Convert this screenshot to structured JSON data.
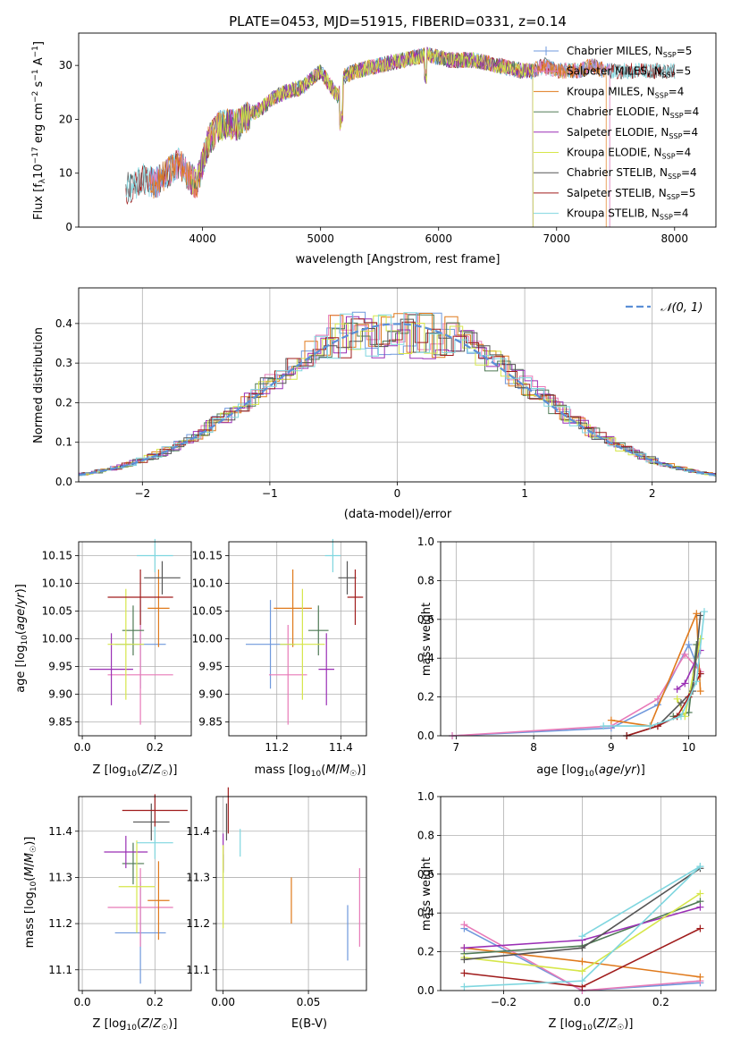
{
  "figure_title": "PLATE=0453, MJD=51915, FIBERID=0331, z=0.14",
  "colors": {
    "chab_miles": "#6f98dc",
    "salp_miles": "#e87ab8",
    "krou_miles": "#e07a1c",
    "chab_elodie": "#4f7a55",
    "salp_elodie": "#9a2fb5",
    "krou_elodie": "#d6e64a",
    "chab_stelib": "#555555",
    "salp_stelib": "#a01c1c",
    "krou_stelib": "#7fd6df",
    "normal_curve": "#5b8fd6",
    "grid": "#b0b0b0"
  },
  "chart_data": [
    {
      "type": "line",
      "panel": "spectrum",
      "xlabel": "wavelength [Angstrom, rest frame]",
      "ylabel": "Flux [f_λ10^-17 erg cm^-2 s^-1 A^-1]",
      "xlim": [
        2950,
        8350
      ],
      "ylim": [
        0,
        36
      ],
      "xticks": [
        4000,
        5000,
        6000,
        7000,
        8000
      ],
      "yticks": [
        0,
        10,
        20,
        30
      ],
      "grid": false,
      "legend_position": "top-right",
      "continuum_x": [
        3350,
        3500,
        3600,
        3700,
        3800,
        3900,
        3950,
        4050,
        4150,
        4300,
        4400,
        4500,
        4600,
        4700,
        4850,
        5000,
        5150,
        5200,
        5300,
        5500,
        5700,
        5900,
        6100,
        6300,
        6500,
        6700,
        6800,
        6900,
        7000,
        7100,
        7200,
        7300,
        7400,
        7500
      ],
      "continuum_y": [
        7,
        9,
        8,
        10,
        12,
        9,
        8,
        16,
        19,
        19,
        21,
        22,
        24,
        25,
        26,
        29,
        24,
        28,
        29,
        30,
        31,
        32,
        31,
        31,
        30,
        29,
        29,
        30,
        29,
        29,
        29,
        30,
        29,
        29
      ],
      "series": [
        {
          "name": "Chabrier MILES",
          "n_ssp": "5",
          "color_key": "chab_miles",
          "x_range": [
            3550,
            7450
          ]
        },
        {
          "name": "Salpeter MILES",
          "n_ssp": "5",
          "color_key": "salp_miles",
          "x_range": [
            3550,
            7450
          ]
        },
        {
          "name": "Kroupa MILES",
          "n_ssp": "4",
          "color_key": "krou_miles",
          "x_range": [
            3550,
            7420
          ]
        },
        {
          "name": "Chabrier ELODIE",
          "n_ssp": "4",
          "color_key": "chab_elodie",
          "x_range": [
            3900,
            6800
          ]
        },
        {
          "name": "Salpeter ELODIE",
          "n_ssp": "4",
          "color_key": "salp_elodie",
          "x_range": [
            3900,
            6800
          ]
        },
        {
          "name": "Kroupa ELODIE",
          "n_ssp": "4",
          "color_key": "krou_elodie",
          "x_range": [
            3900,
            6800
          ]
        },
        {
          "name": "Chabrier STELIB",
          "n_ssp": "4",
          "color_key": "chab_stelib",
          "x_range": [
            3350,
            8000
          ]
        },
        {
          "name": "Salpeter STELIB",
          "n_ssp": "5",
          "color_key": "salp_stelib",
          "x_range": [
            3350,
            8000
          ]
        },
        {
          "name": "Kroupa STELIB",
          "n_ssp": "4",
          "color_key": "krou_stelib",
          "x_range": [
            3350,
            8000
          ]
        }
      ]
    },
    {
      "type": "line",
      "panel": "residuals",
      "xlabel": "(data-model)/error",
      "ylabel": "Normed distribution",
      "xlim": [
        -2.5,
        2.5
      ],
      "ylim": [
        0,
        0.49
      ],
      "xticks": [
        -2,
        -1,
        0,
        1,
        2
      ],
      "yticks": [
        0.0,
        0.1,
        0.2,
        0.3,
        0.4
      ],
      "grid": true,
      "legend_position": "top-right",
      "legend_label": "𝒩(0, 1)",
      "bin_width": 0.1
    },
    {
      "type": "scatter",
      "panel": "age_vs_Z",
      "xlabel": "Z [log10(Z/Z☉)]",
      "ylabel": "age  [log10(age/yr)]",
      "xlim": [
        -0.01,
        0.3
      ],
      "ylim": [
        9.825,
        10.175
      ],
      "xticks": [
        0.0,
        0.2
      ],
      "yticks": [
        9.85,
        9.9,
        9.95,
        10.0,
        10.05,
        10.1,
        10.15
      ],
      "grid": true
    },
    {
      "type": "scatter",
      "panel": "age_vs_mass",
      "xlabel": "mass [log10(M/M☉)]",
      "xlim": [
        11.05,
        11.48
      ],
      "ylim": [
        9.825,
        10.175
      ],
      "xticks": [
        11.2,
        11.4
      ],
      "yticks": [
        9.85,
        9.9,
        9.95,
        10.0,
        10.05,
        10.1,
        10.15
      ],
      "grid": true
    },
    {
      "type": "line",
      "panel": "massweight_vs_age",
      "xlabel": "age  [log10(age/yr)]",
      "ylabel": "mass weight",
      "xlim": [
        6.8,
        10.35
      ],
      "ylim": [
        0,
        1
      ],
      "xticks": [
        7,
        8,
        9,
        10
      ],
      "yticks": [
        0.0,
        0.2,
        0.4,
        0.6,
        0.8,
        1.0
      ],
      "grid": true,
      "series": [
        {
          "key": "chab_miles",
          "x": [
            6.95,
            9.0,
            9.6,
            10.0,
            10.15
          ],
          "y": [
            0.0,
            0.04,
            0.16,
            0.47,
            0.32
          ]
        },
        {
          "key": "salp_miles",
          "x": [
            6.95,
            9.0,
            9.6,
            9.95,
            10.15
          ],
          "y": [
            0.0,
            0.05,
            0.19,
            0.42,
            0.33
          ]
        },
        {
          "key": "krou_miles",
          "x": [
            9.0,
            9.5,
            10.1,
            10.15
          ],
          "y": [
            0.08,
            0.05,
            0.63,
            0.23
          ]
        },
        {
          "key": "chab_elodie",
          "x": [
            9.8,
            10.0,
            10.1
          ],
          "y": [
            0.1,
            0.12,
            0.47
          ]
        },
        {
          "key": "salp_elodie",
          "x": [
            9.85,
            9.95,
            10.15
          ],
          "y": [
            0.24,
            0.27,
            0.44
          ]
        },
        {
          "key": "krou_elodie",
          "x": [
            9.85,
            9.95,
            10.15
          ],
          "y": [
            0.19,
            0.1,
            0.5
          ]
        },
        {
          "key": "chab_stelib",
          "x": [
            9.2,
            9.6,
            9.9,
            10.05,
            10.15
          ],
          "y": [
            0.0,
            0.05,
            0.17,
            0.23,
            0.62
          ]
        },
        {
          "key": "salp_stelib",
          "x": [
            9.2,
            9.6,
            9.85,
            10.0,
            10.15
          ],
          "y": [
            0.0,
            0.05,
            0.1,
            0.2,
            0.32
          ]
        },
        {
          "key": "krou_stelib",
          "x": [
            8.9,
            9.5,
            9.9,
            10.1,
            10.2
          ],
          "y": [
            0.05,
            0.05,
            0.1,
            0.28,
            0.64
          ]
        }
      ]
    },
    {
      "type": "scatter",
      "panel": "mass_vs_Z",
      "xlabel": "Z [log10(Z/Z☉)]",
      "ylabel": "mass [log10(M/M☉)]",
      "xlim": [
        -0.01,
        0.3
      ],
      "ylim": [
        11.055,
        11.475
      ],
      "xticks": [
        0.0,
        0.2
      ],
      "yticks": [
        11.1,
        11.2,
        11.3,
        11.4
      ],
      "grid": true
    },
    {
      "type": "scatter",
      "panel": "mass_vs_EBV",
      "xlabel": "E(B-V)",
      "xlim": [
        -0.004,
        0.084
      ],
      "ylim": [
        11.055,
        11.475
      ],
      "xticks": [
        0.0,
        0.05
      ],
      "yticks": [
        11.1,
        11.2,
        11.3,
        11.4
      ],
      "grid": true
    },
    {
      "type": "line",
      "panel": "massweight_vs_Z",
      "xlabel": "Z [log10(Z/Z☉)]",
      "ylabel": "mass weight",
      "xlim": [
        -0.36,
        0.34
      ],
      "ylim": [
        0,
        1
      ],
      "xticks": [
        -0.2,
        0.0,
        0.2
      ],
      "yticks": [
        0.0,
        0.2,
        0.4,
        0.6,
        0.8,
        1.0
      ],
      "grid": true,
      "series": [
        {
          "key": "chab_miles",
          "x": [
            -0.3,
            0.0,
            0.3
          ],
          "y": [
            0.32,
            0.0,
            0.04
          ]
        },
        {
          "key": "salp_miles",
          "x": [
            -0.3,
            0.0,
            0.3
          ],
          "y": [
            0.34,
            0.0,
            0.05
          ]
        },
        {
          "key": "krou_miles",
          "x": [
            -0.3,
            0.0,
            0.3
          ],
          "y": [
            0.22,
            0.15,
            0.07
          ]
        },
        {
          "key": "chab_elodie",
          "x": [
            -0.3,
            0.0,
            0.3
          ],
          "y": [
            0.19,
            0.23,
            0.46
          ]
        },
        {
          "key": "salp_elodie",
          "x": [
            -0.3,
            0.0,
            0.3
          ],
          "y": [
            0.22,
            0.26,
            0.43
          ]
        },
        {
          "key": "krou_elodie",
          "x": [
            -0.3,
            0.0,
            0.3
          ],
          "y": [
            0.17,
            0.1,
            0.5
          ]
        },
        {
          "key": "chab_stelib",
          "x": [
            -0.3,
            0.0,
            0.3
          ],
          "y": [
            0.16,
            0.22,
            0.63
          ]
        },
        {
          "key": "salp_stelib",
          "x": [
            -0.3,
            0.0,
            0.3
          ],
          "y": [
            0.09,
            0.02,
            0.32
          ]
        },
        {
          "key": "krou_stelib",
          "x": [
            -0.3,
            0.0,
            0.3
          ],
          "y": [
            0.02,
            0.05,
            0.64
          ]
        },
        {
          "key": "krou_stelib",
          "x": [
            0.0,
            0.3
          ],
          "y": [
            0.28,
            0.64
          ]
        }
      ]
    }
  ],
  "fit_results": [
    {
      "key": "chab_miles",
      "Z": 0.16,
      "Z_err": 0.07,
      "age": 9.99,
      "age_err": 0.08,
      "mass": 11.18,
      "mass_err": 0.11,
      "mass_Zx": 0.16,
      "ebv": 0.073,
      "ebv_err_mass": 0.06
    },
    {
      "key": "salp_miles",
      "Z": 0.16,
      "Z_err": 0.09,
      "age": 9.935,
      "age_err": 0.09,
      "mass": 11.235,
      "mass_err": 0.085,
      "mass_Zx": 0.16,
      "ebv": 0.08,
      "ebv_err_mass": 0.085
    },
    {
      "key": "krou_miles",
      "Z": 0.21,
      "Z_err": 0.03,
      "age": 10.055,
      "age_err": 0.07,
      "mass": 11.25,
      "mass_err": 0.085,
      "mass_Zx": 0.21,
      "ebv": 0.04,
      "ebv_err_mass": 0.05
    },
    {
      "key": "chab_elodie",
      "Z": 0.14,
      "Z_err": 0.03,
      "age": 10.015,
      "age_err": 0.045,
      "mass": 11.33,
      "mass_err": 0.045,
      "mass_Zx": 0.14,
      "ebv": 0.0,
      "ebv_err_mass": 0.02
    },
    {
      "key": "salp_elodie",
      "Z": 0.08,
      "Z_err": 0.06,
      "age": 9.945,
      "age_err": 0.065,
      "mass": 11.355,
      "mass_err": 0.035,
      "mass_Zx": 0.12,
      "ebv": 0.0,
      "ebv_err_mass": 0.04
    },
    {
      "key": "krou_elodie",
      "Z": 0.12,
      "Z_err": 0.05,
      "age": 9.99,
      "age_err": 0.1,
      "mass": 11.28,
      "mass_err": 0.1,
      "mass_Zx": 0.15,
      "ebv": 0.0,
      "ebv_err_mass": 0.09
    },
    {
      "key": "chab_stelib",
      "Z": 0.22,
      "Z_err": 0.05,
      "age": 10.11,
      "age_err": 0.03,
      "mass": 11.42,
      "mass_err": 0.04,
      "mass_Zx": 0.19,
      "ebv": 0.002,
      "ebv_err_mass": 0.04
    },
    {
      "key": "salp_stelib",
      "Z": 0.16,
      "Z_err": 0.09,
      "age": 10.075,
      "age_err": 0.05,
      "mass": 11.445,
      "mass_err": 0.035,
      "mass_Zx": 0.2,
      "ebv": 0.003,
      "ebv_err_mass": 0.05
    },
    {
      "key": "krou_stelib",
      "Z": 0.2,
      "Z_err": 0.05,
      "age": 10.15,
      "age_err": 0.03,
      "mass": 11.375,
      "mass_err": 0.035,
      "mass_Zx": 0.2,
      "ebv": 0.01,
      "ebv_err_mass": 0.03
    }
  ]
}
